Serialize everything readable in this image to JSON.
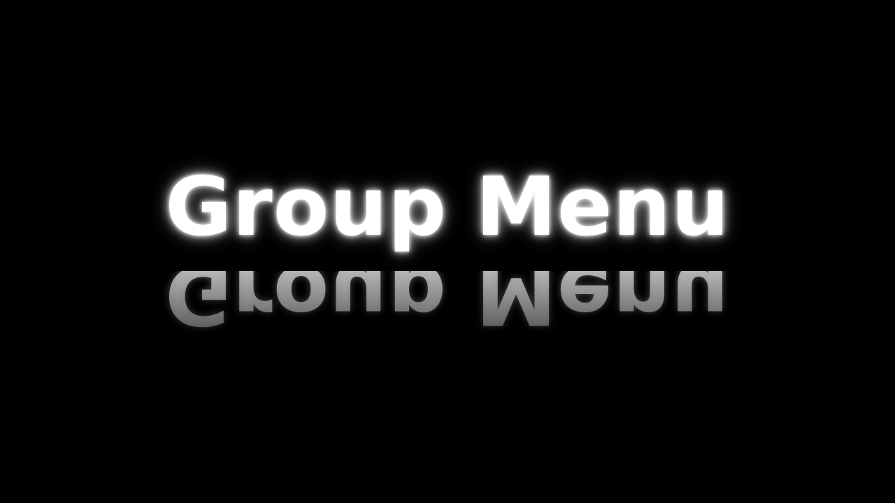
{
  "screen": {
    "title": "Group Menu",
    "background_color": "#000000",
    "text_color": "#ffffff"
  }
}
